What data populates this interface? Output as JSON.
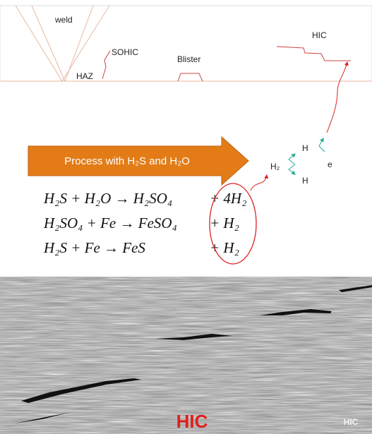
{
  "labels": {
    "weld": "weld",
    "haz": "HAZ",
    "sohic": "SOHIC",
    "blister": "Blister",
    "hic_top": "HIC"
  },
  "process_arrow": "Process with H₂S and H₂O",
  "species": {
    "h2": "H₂",
    "h_top": "H",
    "h_bottom": "H",
    "electron": "e"
  },
  "equations": [
    {
      "left": "H₂S + H₂O → H₂SO₄",
      "right": "+ 4H₂"
    },
    {
      "left": "H₂SO₄ + Fe → FeSO₄",
      "right": "+ H₂"
    },
    {
      "left": "H₂S + Fe → FeS",
      "right": "+ H₂"
    }
  ],
  "micrograph": {
    "label": "HIC",
    "corner_label": "HIC"
  }
}
